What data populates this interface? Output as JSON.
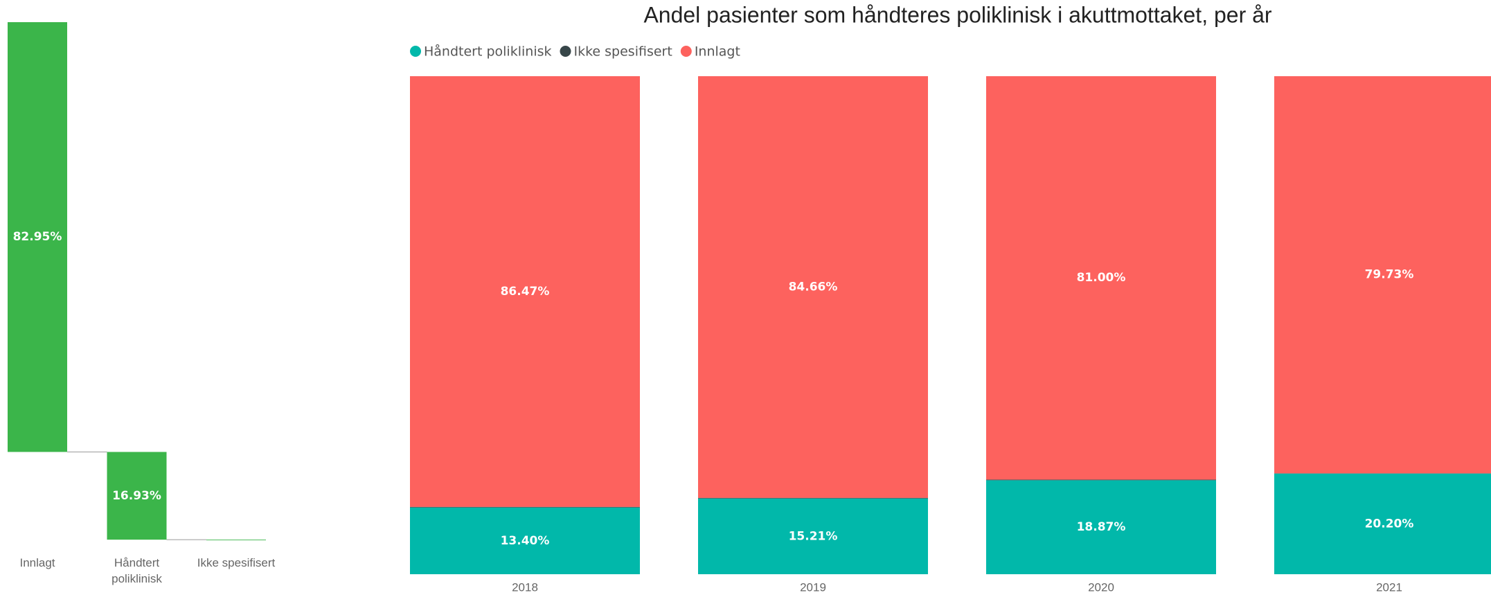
{
  "chart_data": [
    {
      "type": "waterfall",
      "categories": [
        "Innlagt",
        "Håndtert poliklinisk",
        "Ikke spesifisert"
      ],
      "values": [
        82.95,
        16.93,
        0.12
      ],
      "value_labels": [
        "82.95%",
        "16.93%",
        null
      ],
      "color": "#3bb54a"
    },
    {
      "type": "stacked_bar",
      "title": "Andel pasienter som håndteres poliklinisk i akuttmottaket, per år",
      "categories": [
        "2018",
        "2019",
        "2020",
        "2021"
      ],
      "ylim": [
        0,
        100
      ],
      "legend": "top-left",
      "series": [
        {
          "name": "Håndtert poliklinisk",
          "color": "#01b8aa",
          "values": [
            13.4,
            15.21,
            18.87,
            20.2
          ],
          "value_labels": [
            "13.40%",
            "15.21%",
            "18.87%",
            "20.20%"
          ]
        },
        {
          "name": "Ikke spesifisert",
          "color": "#374649",
          "values": [
            0.13,
            0.13,
            0.13,
            0.07
          ],
          "value_labels": [
            null,
            null,
            null,
            null
          ]
        },
        {
          "name": "Innlagt",
          "color": "#fd625e",
          "values": [
            86.47,
            84.66,
            81.0,
            79.73
          ],
          "value_labels": [
            "86.47%",
            "84.66%",
            "81.00%",
            "79.73%"
          ]
        }
      ]
    }
  ]
}
